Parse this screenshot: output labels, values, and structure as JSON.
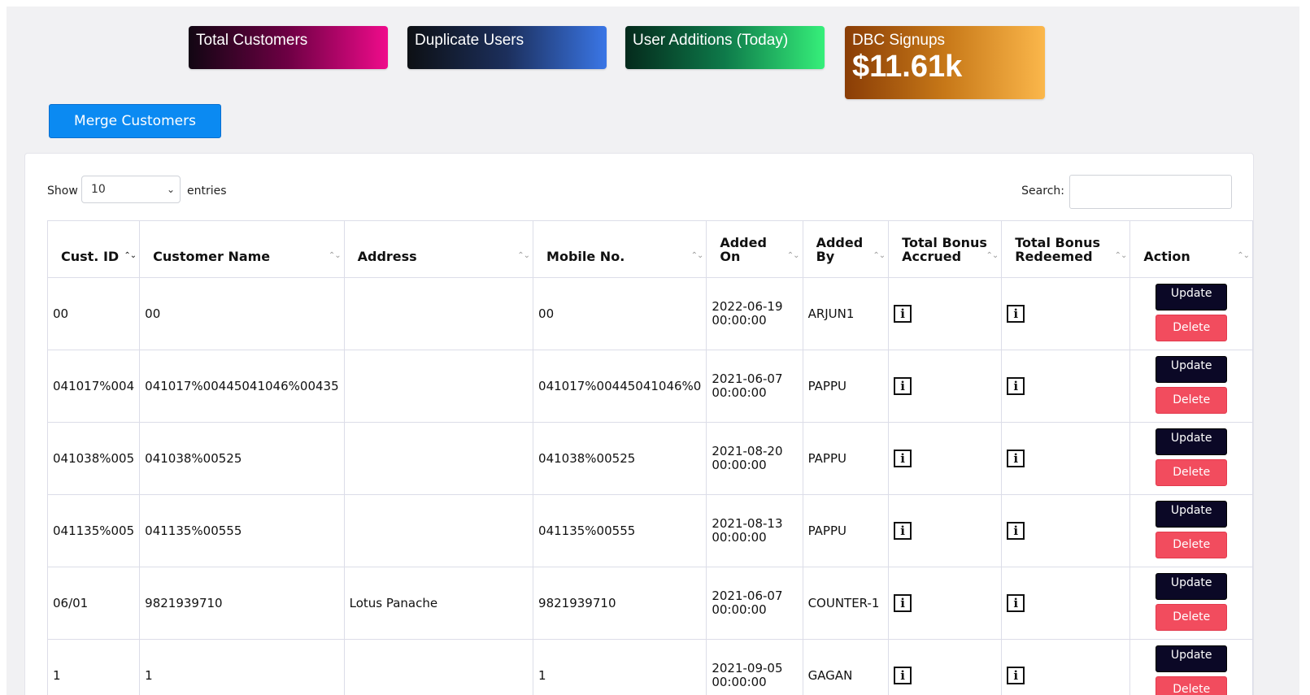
{
  "stats": {
    "total_customers": {
      "title": "Total Customers",
      "value": ""
    },
    "duplicate_users": {
      "title": "Duplicate Users",
      "value": ""
    },
    "user_additions": {
      "title": "User Additions (Today)",
      "value": ""
    },
    "dbc_signups": {
      "title": "DBC Signups",
      "value": "$11.61k"
    }
  },
  "merge_button": "Merge Customers",
  "length_control": {
    "show_label": "Show",
    "selected": "10",
    "entries_label": "entries"
  },
  "search": {
    "label": "Search:",
    "value": ""
  },
  "table": {
    "columns": [
      {
        "line1": "Cust. ID",
        "line2": ""
      },
      {
        "line1": "Customer Name",
        "line2": ""
      },
      {
        "line1": "Address",
        "line2": ""
      },
      {
        "line1": "Mobile No.",
        "line2": ""
      },
      {
        "line1": "Added",
        "line2": "On"
      },
      {
        "line1": "Added",
        "line2": "By"
      },
      {
        "line1": "Total Bonus",
        "line2": "Accrued"
      },
      {
        "line1": "Total Bonus",
        "line2": "Redeemed"
      },
      {
        "line1": "Action",
        "line2": ""
      }
    ],
    "update_label": "Update",
    "delete_label": "Delete",
    "rows": [
      {
        "cust_id": "00",
        "name": "00",
        "address": "",
        "mobile": "00",
        "added_date": "2022-06-19",
        "added_time": "00:00:00",
        "added_by": "ARJUN1"
      },
      {
        "cust_id": "041017%004",
        "name": "041017%00445041046%00435",
        "address": "",
        "mobile": "041017%00445041046%0",
        "added_date": "2021-06-07",
        "added_time": "00:00:00",
        "added_by": "PAPPU"
      },
      {
        "cust_id": "041038%005",
        "name": "041038%00525",
        "address": "",
        "mobile": "041038%00525",
        "added_date": "2021-08-20",
        "added_time": "00:00:00",
        "added_by": "PAPPU"
      },
      {
        "cust_id": "041135%005",
        "name": "041135%00555",
        "address": "",
        "mobile": "041135%00555",
        "added_date": "2021-08-13",
        "added_time": "00:00:00",
        "added_by": "PAPPU"
      },
      {
        "cust_id": "06/01",
        "name": "9821939710",
        "address": "Lotus Panache",
        "mobile": "9821939710",
        "added_date": "2021-06-07",
        "added_time": "00:00:00",
        "added_by": "COUNTER-1"
      },
      {
        "cust_id": "1",
        "name": "1",
        "address": "",
        "mobile": "1",
        "added_date": "2021-09-05",
        "added_time": "00:00:00",
        "added_by": "GAGAN"
      }
    ]
  },
  "icons": {
    "info": "info-icon",
    "sort": "sort-arrows-icon",
    "chevron": "chevron-down-icon"
  },
  "colors": {
    "merge_button": "#0b8af2",
    "update_button": "#0b0826",
    "delete_button": "#f24c5e"
  }
}
